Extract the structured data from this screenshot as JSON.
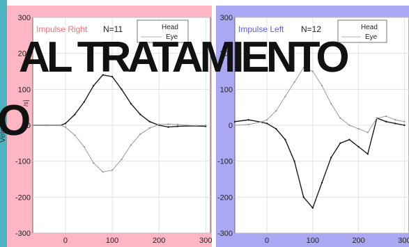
{
  "slide": {
    "title_line1": "AL TRATAMIENTO",
    "title_line2": "O",
    "ylabel_fragment": "Veloc",
    "unit_fragment": "/s]"
  },
  "colors": {
    "right_panel_bg": "#ffb6c4",
    "left_panel_bg": "#aaa8f3",
    "right_title": "#e8747f",
    "left_title": "#5c5ce0",
    "head_trace": "#1a1a1a",
    "eye_trace": "#9a9a9a",
    "decor_left": "#4db3c0"
  },
  "chart_data": [
    {
      "type": "line",
      "title": "Impulse Right",
      "n_label": "N=11",
      "xlim": [
        -70,
        310
      ],
      "ylim": [
        -300,
        300
      ],
      "x_ticks": [
        0,
        100,
        200,
        300
      ],
      "y_ticks": [
        300,
        200,
        100,
        0,
        -100,
        -200,
        -300
      ],
      "grid": true,
      "legend": {
        "position": "top-right",
        "entries": [
          "Head",
          "Eye"
        ]
      },
      "x": [
        -70,
        -40,
        -10,
        0,
        20,
        40,
        60,
        80,
        100,
        120,
        140,
        160,
        180,
        200,
        220,
        240,
        260,
        280,
        300
      ],
      "series": [
        {
          "name": "Head",
          "values": [
            0,
            0,
            0,
            5,
            30,
            65,
            110,
            140,
            135,
            100,
            60,
            30,
            10,
            0,
            -5,
            -3,
            -2,
            -2,
            -3
          ]
        },
        {
          "name": "Eye",
          "values": [
            0,
            0,
            0,
            -5,
            -28,
            -60,
            -105,
            -130,
            -125,
            -95,
            -55,
            -25,
            -8,
            2,
            3,
            2,
            0,
            -1,
            0
          ]
        }
      ]
    },
    {
      "type": "line",
      "title": "Impulse Left",
      "n_label": "N=12",
      "xlim": [
        -70,
        310
      ],
      "ylim": [
        -300,
        300
      ],
      "x_ticks": [
        0,
        100,
        200,
        300
      ],
      "y_ticks": [
        300,
        200,
        100,
        0,
        -100,
        -200,
        -300
      ],
      "grid": true,
      "legend": {
        "position": "top-right",
        "entries": [
          "Head",
          "Eye"
        ]
      },
      "x": [
        -70,
        -40,
        -10,
        0,
        20,
        40,
        60,
        80,
        100,
        120,
        140,
        160,
        180,
        200,
        220,
        240,
        260,
        280,
        300
      ],
      "series": [
        {
          "name": "Head",
          "values": [
            10,
            15,
            8,
            5,
            -10,
            -40,
            -100,
            -200,
            -230,
            -160,
            -90,
            -50,
            -40,
            -60,
            -80,
            20,
            10,
            5,
            0
          ]
        },
        {
          "name": "Eye",
          "values": [
            0,
            2,
            10,
            15,
            40,
            80,
            120,
            160,
            150,
            110,
            60,
            20,
            0,
            -10,
            -20,
            20,
            25,
            15,
            10
          ]
        }
      ]
    }
  ]
}
